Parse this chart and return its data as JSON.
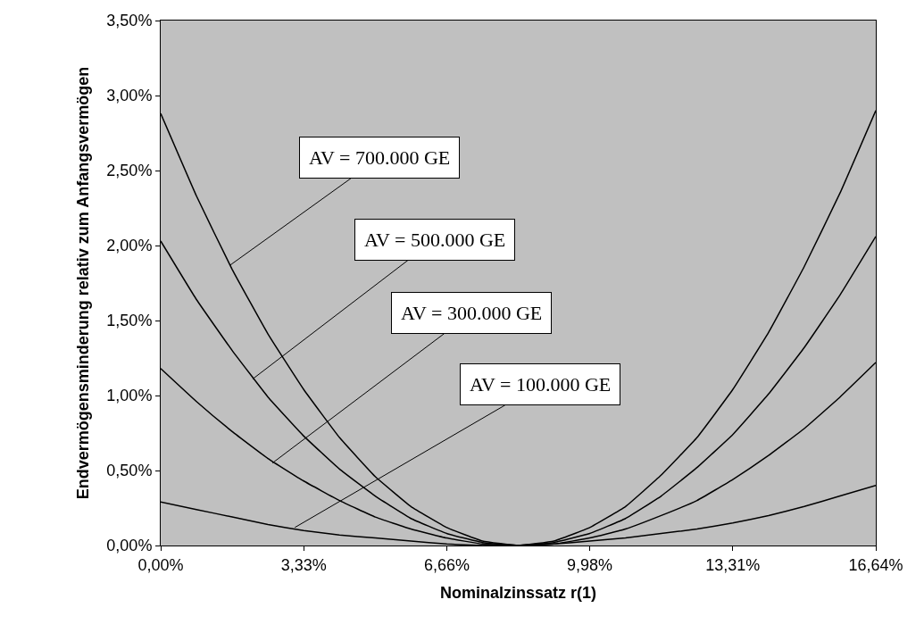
{
  "chart_data": {
    "type": "line",
    "xlabel": "Nominalzinssatz r(1)",
    "ylabel": "Endvermögensminderung relativ zum Anfangsvermögen",
    "x": [
      0,
      0.832,
      1.664,
      2.496,
      3.328,
      4.16,
      4.992,
      5.824,
      6.656,
      7.488,
      8.32,
      9.152,
      9.984,
      10.816,
      11.648,
      12.48,
      13.312,
      14.144,
      14.976,
      15.808,
      16.64
    ],
    "series": [
      {
        "color": "#000000",
        "values": [
          2.88,
          2.33,
          1.84,
          1.41,
          1.04,
          0.72,
          0.46,
          0.26,
          0.12,
          0.03,
          0,
          0.03,
          0.12,
          0.26,
          0.47,
          0.72,
          1.04,
          1.42,
          1.86,
          2.35,
          2.9
        ]
      },
      {
        "color": "#000000",
        "values": [
          2.03,
          1.64,
          1.3,
          0.99,
          0.73,
          0.51,
          0.33,
          0.18,
          0.08,
          0.02,
          0,
          0.02,
          0.08,
          0.18,
          0.33,
          0.52,
          0.74,
          1.01,
          1.32,
          1.67,
          2.06
        ]
      },
      {
        "color": "#000000",
        "values": [
          1.18,
          0.96,
          0.76,
          0.58,
          0.43,
          0.3,
          0.19,
          0.11,
          0.05,
          0.01,
          0,
          0.01,
          0.05,
          0.11,
          0.2,
          0.3,
          0.44,
          0.6,
          0.78,
          0.99,
          1.22
        ]
      },
      {
        "color": "#000000",
        "values": [
          0.29,
          0.24,
          0.19,
          0.14,
          0.1,
          0.07,
          0.05,
          0.03,
          0.01,
          0,
          0,
          0.01,
          0.03,
          0.05,
          0.08,
          0.11,
          0.15,
          0.2,
          0.26,
          0.33,
          0.4
        ]
      }
    ],
    "xlim": [
      0,
      16.64
    ],
    "xticks": [
      {
        "value": 0,
        "label": "0,00%"
      },
      {
        "value": 3.33,
        "label": "3,33%"
      },
      {
        "value": 6.66,
        "label": "6,66%"
      },
      {
        "value": 9.98,
        "label": "9,98%"
      },
      {
        "value": 13.31,
        "label": "13,31%"
      },
      {
        "value": 16.64,
        "label": "16,64%"
      }
    ],
    "ylim": [
      0,
      3.5
    ],
    "yticks": [
      {
        "value": 0,
        "label": "0,00%"
      },
      {
        "value": 0.5,
        "label": "0,50%"
      },
      {
        "value": 1,
        "label": "1,00%"
      },
      {
        "value": 1.5,
        "label": "1,50%"
      },
      {
        "value": 2,
        "label": "2,00%"
      },
      {
        "value": 2.5,
        "label": "2,50%"
      },
      {
        "value": 3,
        "label": "3,00%"
      },
      {
        "value": 3.5,
        "label": "3,50%"
      }
    ],
    "annotations": [
      {
        "text": "AV = 700.000 GE",
        "x": 1.62,
        "y": 1.87
      },
      {
        "text": "AV = 500.000 GE",
        "x": 2.14,
        "y": 1.11
      },
      {
        "text": "AV = 300.000 GE",
        "x": 2.6,
        "y": 0.55
      },
      {
        "text": "AV = 100.000 GE",
        "x": 3.12,
        "y": 0.12
      }
    ],
    "grid": false,
    "marker": "none",
    "line_style": "solid"
  }
}
